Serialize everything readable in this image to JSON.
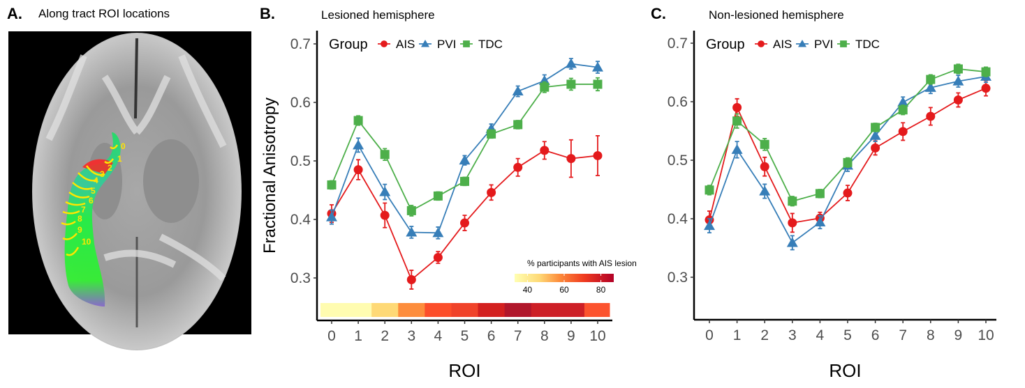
{
  "panel_a": {
    "letter": "A.",
    "title": "Along tract ROI locations",
    "roi_labels": [
      "0",
      "1",
      "2",
      "3",
      "4",
      "5",
      "6",
      "7",
      "8",
      "9",
      "10"
    ]
  },
  "legend": {
    "title": "Group",
    "entries": [
      {
        "name": "AIS",
        "color": "#e41a1c",
        "marker": "circle"
      },
      {
        "name": "PVI",
        "color": "#377eb8",
        "marker": "triangle"
      },
      {
        "name": "TDC",
        "color": "#4daf4a",
        "marker": "square"
      }
    ]
  },
  "chart_data": [
    {
      "type": "line",
      "panel_letter": "B.",
      "title": "Lesioned hemisphere",
      "xlabel": "ROI",
      "ylabel": "Fractional Anisotropy",
      "x": [
        0,
        1,
        2,
        3,
        4,
        5,
        6,
        7,
        8,
        9,
        10
      ],
      "xticks": [
        "0",
        "1",
        "2",
        "3",
        "4",
        "5",
        "6",
        "7",
        "8",
        "9",
        "10"
      ],
      "yticks": [
        "0.3",
        "0.4",
        "0.5",
        "0.6",
        "0.7"
      ],
      "ylim": [
        0.23,
        0.72
      ],
      "grid": false,
      "legend_placement": "top-left",
      "series": [
        {
          "name": "AIS",
          "values": [
            0.41,
            0.485,
            0.407,
            0.297,
            0.335,
            0.394,
            0.446,
            0.489,
            0.518,
            0.504,
            0.509
          ],
          "err": [
            0.015,
            0.017,
            0.021,
            0.016,
            0.01,
            0.013,
            0.013,
            0.015,
            0.015,
            0.032,
            0.034
          ]
        },
        {
          "name": "PVI",
          "values": [
            0.404,
            0.527,
            0.447,
            0.378,
            0.377,
            0.501,
            0.555,
            0.619,
            0.637,
            0.666,
            0.66
          ],
          "err": [
            0.012,
            0.012,
            0.013,
            0.01,
            0.01,
            0.008,
            0.008,
            0.009,
            0.01,
            0.009,
            0.01
          ]
        },
        {
          "name": "TDC",
          "values": [
            0.459,
            0.569,
            0.511,
            0.415,
            0.44,
            0.465,
            0.546,
            0.562,
            0.626,
            0.631,
            0.631
          ],
          "err": [
            0.007,
            0.008,
            0.01,
            0.009,
            0.007,
            0.007,
            0.007,
            0.007,
            0.009,
            0.01,
            0.011
          ]
        }
      ],
      "lesion_heatmap": {
        "title": "% participants with AIS lesion",
        "ticks": [
          "40",
          "60",
          "80"
        ],
        "range": [
          33,
          87
        ],
        "values": [
          33,
          33,
          45,
          55,
          65,
          67,
          78,
          85,
          80,
          80,
          64
        ],
        "colors": [
          "#fffcb0",
          "#fffcb0",
          "#fed976",
          "#fd8d3c",
          "#fc4e2a",
          "#f0432a",
          "#d3201f",
          "#b1172b",
          "#cd1f26",
          "#cd1f26",
          "#fc532e"
        ]
      }
    },
    {
      "type": "line",
      "panel_letter": "C.",
      "title": "Non-lesioned hemisphere",
      "xlabel": "ROI",
      "ylabel": "",
      "x": [
        0,
        1,
        2,
        3,
        4,
        5,
        6,
        7,
        8,
        9,
        10
      ],
      "xticks": [
        "0",
        "1",
        "2",
        "3",
        "4",
        "5",
        "6",
        "7",
        "8",
        "9",
        "10"
      ],
      "yticks": [
        "0.3",
        "0.4",
        "0.5",
        "0.6",
        "0.7"
      ],
      "ylim": [
        0.23,
        0.72
      ],
      "grid": false,
      "legend_placement": "top-left",
      "series": [
        {
          "name": "AIS",
          "values": [
            0.398,
            0.59,
            0.489,
            0.393,
            0.401,
            0.444,
            0.521,
            0.549,
            0.575,
            0.603,
            0.623
          ],
          "err": [
            0.015,
            0.015,
            0.016,
            0.016,
            0.01,
            0.013,
            0.012,
            0.015,
            0.015,
            0.012,
            0.013
          ]
        },
        {
          "name": "PVI",
          "values": [
            0.388,
            0.518,
            0.447,
            0.359,
            0.394,
            0.491,
            0.542,
            0.599,
            0.624,
            0.635,
            0.643
          ],
          "err": [
            0.012,
            0.014,
            0.012,
            0.012,
            0.011,
            0.01,
            0.01,
            0.009,
            0.01,
            0.01,
            0.01
          ]
        },
        {
          "name": "TDC",
          "values": [
            0.449,
            0.567,
            0.527,
            0.43,
            0.443,
            0.496,
            0.556,
            0.586,
            0.638,
            0.656,
            0.651
          ],
          "err": [
            0.008,
            0.012,
            0.01,
            0.008,
            0.007,
            0.008,
            0.007,
            0.008,
            0.008,
            0.008,
            0.008
          ]
        }
      ]
    }
  ]
}
